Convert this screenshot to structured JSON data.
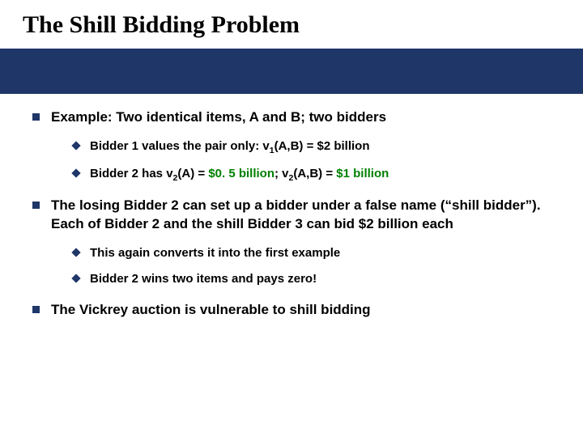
{
  "colors": {
    "banner_bg": "#1f3668",
    "bullet_color": "#1f3668",
    "text_color": "#000000",
    "accent_green": "#008000",
    "page_bg": "#ffffff"
  },
  "typography": {
    "title_font": "Times New Roman",
    "body_font": "Arial",
    "title_size_pt": 30,
    "level1_size_pt": 17,
    "level2_size_pt": 15
  },
  "title": "The Shill Bidding Problem",
  "bullets": {
    "b1": "Example: Two identical items, A and B; two bidders",
    "b1_sub1_pre": "Bidder 1 values the pair only: v",
    "b1_sub1_sub": "1",
    "b1_sub1_post": "(A,B) = $2 billion",
    "b1_sub2_pre": "Bidder 2 has v",
    "b1_sub2_sub1": "2",
    "b1_sub2_mid1": "(A) = ",
    "b1_sub2_green1": "$0. 5 billion",
    "b1_sub2_mid2": "; v",
    "b1_sub2_sub2": "2",
    "b1_sub2_mid3": "(A,B) = ",
    "b1_sub2_green2": "$1 billion",
    "b2": "The losing Bidder 2 can set up a bidder under a false name (“shill bidder”). Each of Bidder 2 and the shill Bidder 3 can bid $2 billion each",
    "b2_sub1": "This again converts it into the first example",
    "b2_sub2": "Bidder 2 wins two items and pays zero!",
    "b3": "The Vickrey auction is vulnerable to shill bidding"
  }
}
